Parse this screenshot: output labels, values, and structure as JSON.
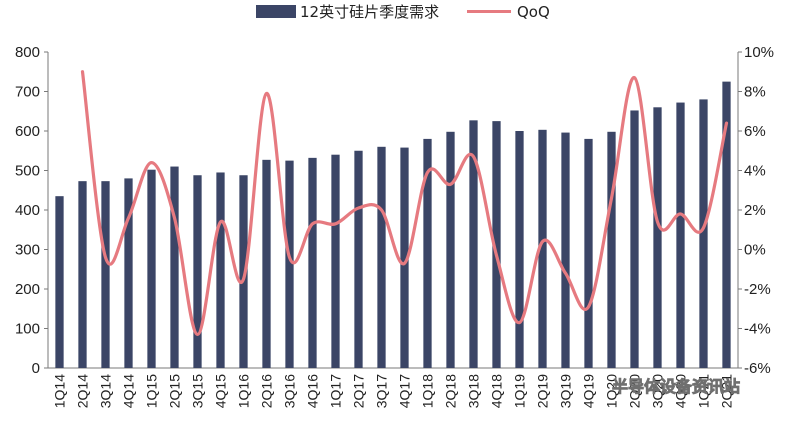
{
  "chart_data": {
    "type": "bar",
    "categories": [
      "1Q14",
      "2Q14",
      "3Q14",
      "4Q14",
      "1Q15",
      "2Q15",
      "3Q15",
      "4Q15",
      "1Q16",
      "2Q16",
      "3Q16",
      "4Q16",
      "1Q17",
      "2Q17",
      "3Q17",
      "4Q17",
      "1Q18",
      "2Q18",
      "3Q18",
      "4Q18",
      "1Q19",
      "2Q19",
      "3Q19",
      "4Q19",
      "1Q20",
      "2Q20",
      "3Q20",
      "4Q20",
      "1Q21",
      "2Q21"
    ],
    "series": [
      {
        "name": "12英寸硅片季度需求",
        "type": "bar",
        "axis": "left",
        "color": "#3b4566",
        "values": [
          435,
          473,
          473,
          480,
          502,
          510,
          488,
          495,
          488,
          527,
          525,
          532,
          540,
          550,
          560,
          558,
          580,
          598,
          627,
          625,
          600,
          603,
          596,
          580,
          598,
          652,
          660,
          672,
          680,
          725
        ]
      },
      {
        "name": "QoQ",
        "type": "line",
        "axis": "right",
        "color": "#e67a80",
        "values": [
          null,
          9.0,
          -0.4,
          1.6,
          4.4,
          1.6,
          -4.3,
          1.4,
          -1.5,
          7.9,
          -0.4,
          1.3,
          1.3,
          2.1,
          2.0,
          -0.7,
          3.9,
          3.3,
          4.7,
          -0.3,
          -3.7,
          0.4,
          -1.2,
          -2.9,
          2.6,
          8.7,
          1.4,
          1.8,
          1.1,
          6.4
        ]
      }
    ],
    "ylim_left": [
      0,
      800
    ],
    "yticks_left": [
      "0",
      "100",
      "200",
      "300",
      "400",
      "500",
      "600",
      "700",
      "800"
    ],
    "ylim_right": [
      -6,
      10
    ],
    "yticks_right": [
      "-6%",
      "-4%",
      "-2%",
      "0%",
      "2%",
      "4%",
      "6%",
      "8%",
      "10%"
    ],
    "legend_position": "top-center",
    "grid": false
  },
  "watermark": "半导体设备资讯站"
}
